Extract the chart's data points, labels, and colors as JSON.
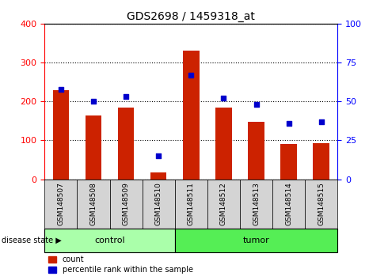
{
  "title": "GDS2698 / 1459318_at",
  "samples": [
    "GSM148507",
    "GSM148508",
    "GSM148509",
    "GSM148510",
    "GSM148511",
    "GSM148512",
    "GSM148513",
    "GSM148514",
    "GSM148515"
  ],
  "counts": [
    230,
    163,
    184,
    18,
    330,
    184,
    148,
    90,
    92
  ],
  "percentiles": [
    58,
    50,
    53,
    15,
    67,
    52,
    48,
    36,
    37
  ],
  "groups": [
    "control",
    "control",
    "control",
    "control",
    "tumor",
    "tumor",
    "tumor",
    "tumor",
    "tumor"
  ],
  "control_color": "#aaffaa",
  "tumor_color": "#55ee55",
  "bar_color": "#cc2200",
  "dot_color": "#0000cc",
  "ylim_left": [
    0,
    400
  ],
  "ylim_right": [
    0,
    100
  ],
  "yticks_left": [
    0,
    100,
    200,
    300,
    400
  ],
  "yticks_right": [
    0,
    25,
    50,
    75,
    100
  ],
  "background_color": "#ffffff",
  "legend_labels": [
    "count",
    "percentile rank within the sample"
  ],
  "disease_state_label": "disease state"
}
